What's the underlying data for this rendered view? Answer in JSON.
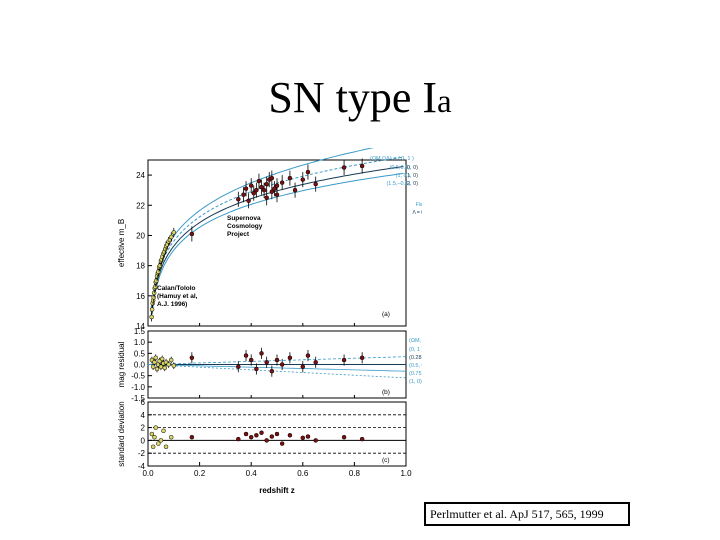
{
  "slide": {
    "title_main": "SN type I",
    "title_tail": "a",
    "citation": "Perlmutter et al. ApJ 517, 565, 1999"
  },
  "colors": {
    "low_z_points": "#d9d36a",
    "high_z_points": "#7a1010",
    "model_curves": "#3a9ac8",
    "fit_curve": "#1a3a55",
    "axes": "#000000"
  },
  "chart_data": [
    {
      "type": "scatter",
      "panel": "a",
      "ylabel": "effective m_B",
      "ylim": [
        14,
        25
      ],
      "yticks": [
        "14",
        "16",
        "18",
        "20",
        "22",
        "24"
      ],
      "xlim": [
        0,
        1
      ],
      "annotations": [
        "Supernova",
        "Cosmology",
        "Project",
        "Calan/Tololo",
        "(Hamuy et al,",
        "A.J. 1996)",
        "(a)"
      ],
      "legend": {
        "placement": "top-right",
        "header": "(ΩM,ΩΛ) = ( 0,   1 )",
        "left": [
          "(0.5,0.5)",
          "(1,   0 )",
          "(1.5,–0.5)"
        ],
        "right": [
          "(0, 0)",
          "(1, 0)",
          "(2, 0)"
        ],
        "side_labels": [
          "Flat",
          "Λ = 0"
        ]
      },
      "series": [
        {
          "name": "Calan/Tololo",
          "x": [
            0.014,
            0.016,
            0.018,
            0.02,
            0.022,
            0.024,
            0.026,
            0.028,
            0.03,
            0.032,
            0.035,
            0.038,
            0.04,
            0.043,
            0.046,
            0.05,
            0.053,
            0.056,
            0.06,
            0.063,
            0.067,
            0.07,
            0.075,
            0.08,
            0.085,
            0.09,
            0.1
          ],
          "y": [
            14.6,
            15.1,
            15.5,
            15.7,
            15.9,
            16.2,
            16.5,
            16.6,
            16.9,
            17.0,
            17.3,
            17.5,
            17.6,
            17.9,
            18.0,
            18.3,
            18.4,
            18.6,
            18.8,
            18.9,
            19.1,
            19.3,
            19.4,
            19.6,
            19.7,
            19.9,
            20.2
          ]
        },
        {
          "name": "Supernova Cosmology Project",
          "x": [
            0.17,
            0.35,
            0.37,
            0.38,
            0.39,
            0.4,
            0.41,
            0.42,
            0.43,
            0.44,
            0.45,
            0.46,
            0.46,
            0.47,
            0.48,
            0.48,
            0.49,
            0.5,
            0.5,
            0.52,
            0.55,
            0.57,
            0.6,
            0.62,
            0.65,
            0.76,
            0.83
          ],
          "y": [
            20.1,
            22.4,
            22.7,
            23.1,
            22.3,
            23.3,
            22.8,
            23.0,
            23.6,
            23.2,
            23.0,
            22.5,
            23.4,
            23.7,
            22.9,
            23.8,
            23.1,
            23.3,
            22.7,
            23.5,
            23.8,
            23.0,
            23.7,
            24.2,
            23.4,
            24.5,
            24.6
          ]
        }
      ],
      "curves": [
        {
          "omega_m": 0,
          "omega_l": 1,
          "offset": 0.5
        },
        {
          "omega_m": 0.5,
          "omega_l": 0.5,
          "offset": 0.25
        },
        {
          "omega_m": 1,
          "omega_l": 0,
          "offset": 0.0
        },
        {
          "omega_m": 1.5,
          "omega_l": -0.5,
          "offset": -0.2
        }
      ]
    },
    {
      "type": "scatter",
      "panel": "b",
      "ylabel": "mag residual",
      "ylim": [
        -1.5,
        1.5
      ],
      "yticks": [
        "1.5",
        "1.0",
        "0.5",
        "0.0",
        "-0.5",
        "-1.0",
        "-1.5"
      ],
      "annotations": [
        "(b)"
      ],
      "legend": {
        "placement": "right",
        "header": "(ΩM, ΩΛ) =",
        "rows": [
          "(0,      1 )",
          "(0.28,   0.72)",
          "(0.5,    0.5 )",
          "(0.75,   0.25 )",
          "(1,      0)"
        ]
      },
      "series": [
        {
          "name": "Calan/Tololo",
          "x": [
            0.015,
            0.02,
            0.025,
            0.03,
            0.035,
            0.04,
            0.045,
            0.05,
            0.055,
            0.06,
            0.065,
            0.07,
            0.08,
            0.09,
            0.1
          ],
          "y": [
            0.2,
            -0.1,
            0.1,
            0.3,
            -0.2,
            0.0,
            0.15,
            -0.1,
            0.25,
            0.05,
            -0.15,
            0.1,
            0.0,
            0.2,
            -0.05
          ]
        },
        {
          "name": "Supernova Cosmology Project",
          "x": [
            0.17,
            0.35,
            0.38,
            0.4,
            0.42,
            0.44,
            0.46,
            0.48,
            0.5,
            0.52,
            0.55,
            0.6,
            0.62,
            0.65,
            0.76,
            0.83
          ],
          "y": [
            0.3,
            -0.1,
            0.4,
            0.2,
            -0.2,
            0.5,
            0.1,
            -0.3,
            0.2,
            0.0,
            0.3,
            -0.1,
            0.4,
            0.1,
            0.2,
            0.3
          ]
        }
      ]
    },
    {
      "type": "scatter",
      "panel": "c",
      "xlabel": "redshift z",
      "ylabel": "standard deviation",
      "ylim": [
        -4,
        6
      ],
      "xlim": [
        0,
        1
      ],
      "xticks": [
        "0.0",
        "0.2",
        "0.4",
        "0.6",
        "0.8",
        "1.0"
      ],
      "yticks": [
        "6",
        "4",
        "2",
        "0",
        "-2",
        "-4"
      ],
      "annotations": [
        "(c)"
      ],
      "series": [
        {
          "name": "Calan/Tololo",
          "x": [
            0.015,
            0.02,
            0.025,
            0.03,
            0.04,
            0.05,
            0.06,
            0.07,
            0.09
          ],
          "y": [
            1,
            -1,
            0.5,
            2,
            -0.5,
            0,
            1.5,
            -1,
            0.5
          ]
        },
        {
          "name": "Supernova Cosmology Project",
          "x": [
            0.17,
            0.35,
            0.38,
            0.4,
            0.42,
            0.44,
            0.46,
            0.48,
            0.5,
            0.52,
            0.55,
            0.6,
            0.62,
            0.65,
            0.76,
            0.83
          ],
          "y": [
            0.5,
            0.2,
            1.0,
            0.5,
            0.8,
            1.2,
            0.0,
            0.6,
            1.0,
            -0.5,
            0.8,
            0.4,
            0.6,
            0.0,
            0.5,
            0.2
          ]
        }
      ]
    }
  ]
}
